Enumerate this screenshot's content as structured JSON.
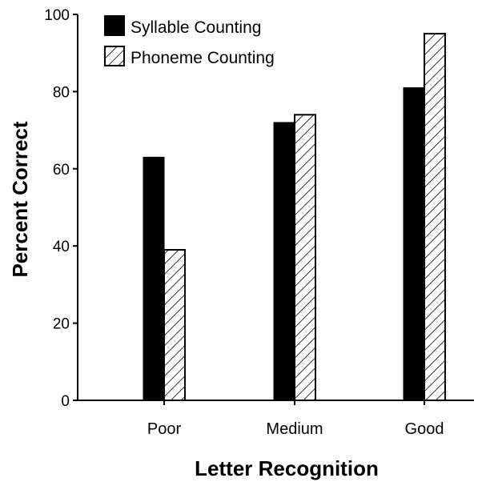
{
  "chart_data": {
    "type": "bar",
    "title": "",
    "xlabel": "Letter Recognition",
    "ylabel": "Percent Correct",
    "categories": [
      "Poor",
      "Medium",
      "Good"
    ],
    "series": [
      {
        "name": "Syllable Counting",
        "values": [
          63,
          72,
          81
        ],
        "fill": "solid",
        "color": "#000000"
      },
      {
        "name": "Phoneme Counting",
        "values": [
          39,
          74,
          95
        ],
        "fill": "hatched",
        "color": "#000000"
      }
    ],
    "ylim": [
      0,
      100
    ],
    "yticks": [
      0,
      20,
      40,
      60,
      80,
      100
    ],
    "grid": false,
    "legend_position": "top-left"
  }
}
